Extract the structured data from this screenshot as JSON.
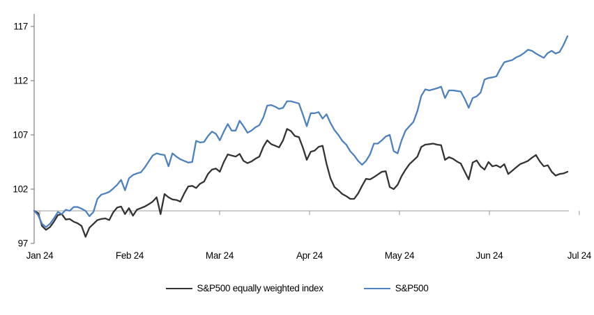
{
  "chart_data": {
    "type": "line",
    "title": "",
    "xlabel": "",
    "ylabel": "",
    "x_tick_labels": [
      "Jan 24",
      "Feb 24",
      "Mar 24",
      "Apr 24",
      "May 24",
      "Jun 24",
      "Jul 24"
    ],
    "y_ticks": [
      97,
      102,
      107,
      112,
      117
    ],
    "ylim": [
      97,
      117
    ],
    "axis_crosses_at": 100,
    "grid": "off",
    "legend_position": "bottom-center",
    "x_range_note": "daily values, late Dec 2023 through mid Jul 2024, evenly spaced; month ticks fall at fractions below",
    "x_first_tick_fraction": 0.0105,
    "x_tick_step_fraction": 0.1686,
    "series": [
      {
        "name": "S&P500 equally weighted index",
        "color": "#333333",
        "values": [
          100.0,
          99.8,
          98.6,
          98.25,
          98.5,
          99.0,
          99.6,
          99.7,
          99.2,
          99.25,
          99.0,
          98.85,
          98.6,
          97.6,
          98.45,
          98.8,
          99.15,
          99.25,
          99.3,
          99.15,
          99.85,
          100.3,
          100.4,
          99.7,
          100.25,
          99.55,
          100.1,
          100.25,
          100.4,
          100.6,
          100.85,
          101.25,
          99.7,
          101.55,
          101.25,
          101.05,
          101.0,
          100.85,
          101.6,
          102.25,
          102.3,
          102.1,
          102.5,
          102.7,
          103.4,
          103.8,
          103.9,
          103.6,
          104.5,
          105.2,
          105.1,
          105.0,
          105.25,
          104.6,
          104.4,
          104.55,
          104.8,
          105.0,
          105.9,
          106.5,
          106.15,
          106.0,
          105.85,
          106.5,
          107.55,
          107.35,
          106.9,
          106.8,
          105.85,
          104.7,
          105.45,
          105.55,
          105.9,
          106.0,
          104.35,
          103.0,
          102.2,
          101.9,
          101.55,
          101.35,
          101.1,
          101.1,
          101.6,
          102.3,
          102.95,
          102.9,
          103.1,
          103.35,
          103.6,
          103.65,
          102.2,
          102.0,
          102.4,
          103.2,
          103.8,
          104.3,
          104.65,
          105.0,
          105.9,
          106.1,
          106.15,
          106.2,
          106.1,
          106.05,
          104.7,
          104.95,
          104.8,
          104.55,
          104.35,
          103.6,
          102.9,
          104.45,
          104.65,
          104.1,
          103.8,
          104.5,
          104.1,
          104.2,
          104.0,
          104.3,
          103.4,
          103.7,
          104.0,
          104.3,
          104.45,
          104.6,
          104.9,
          105.15,
          104.55,
          104.1,
          104.2,
          103.6,
          103.25,
          103.4,
          103.45,
          103.6
        ]
      },
      {
        "name": "S&P500",
        "color": "#4e81bd",
        "values": [
          100.0,
          99.6,
          98.8,
          98.5,
          98.8,
          99.3,
          99.9,
          99.7,
          100.1,
          100.0,
          100.35,
          100.35,
          100.2,
          100.0,
          99.5,
          99.9,
          101.1,
          101.5,
          101.6,
          101.75,
          102.05,
          102.4,
          102.85,
          101.9,
          103.0,
          103.3,
          103.45,
          103.55,
          104.0,
          104.55,
          105.1,
          105.3,
          105.2,
          105.15,
          104.1,
          105.3,
          105.0,
          104.75,
          104.6,
          104.45,
          104.5,
          106.45,
          106.3,
          106.35,
          106.9,
          107.3,
          107.1,
          106.5,
          107.3,
          108.0,
          107.4,
          107.4,
          108.3,
          107.8,
          107.2,
          107.4,
          107.7,
          107.9,
          108.6,
          109.7,
          109.75,
          109.6,
          109.4,
          109.5,
          110.1,
          110.1,
          110.0,
          109.9,
          108.9,
          107.8,
          109.0,
          109.0,
          109.1,
          108.5,
          108.9,
          108.1,
          107.45,
          107.0,
          106.45,
          106.1,
          105.5,
          105.1,
          104.6,
          104.25,
          104.6,
          105.2,
          106.2,
          106.2,
          106.5,
          106.85,
          107.0,
          105.5,
          105.3,
          106.5,
          107.4,
          107.8,
          108.2,
          109.2,
          110.6,
          111.2,
          111.1,
          111.2,
          111.3,
          111.45,
          110.4,
          111.1,
          111.1,
          111.05,
          111.0,
          110.3,
          109.5,
          110.4,
          110.55,
          110.9,
          112.1,
          112.25,
          112.3,
          112.4,
          113.1,
          113.7,
          113.8,
          113.9,
          114.15,
          114.3,
          114.55,
          114.85,
          114.75,
          114.5,
          114.3,
          114.1,
          114.55,
          114.75,
          114.5,
          114.65,
          115.3,
          116.1
        ]
      }
    ]
  },
  "style": {
    "axis_color": "#808080",
    "baseline_color": "#a6a6a6",
    "background": "#ffffff",
    "line_width": 2.3
  }
}
